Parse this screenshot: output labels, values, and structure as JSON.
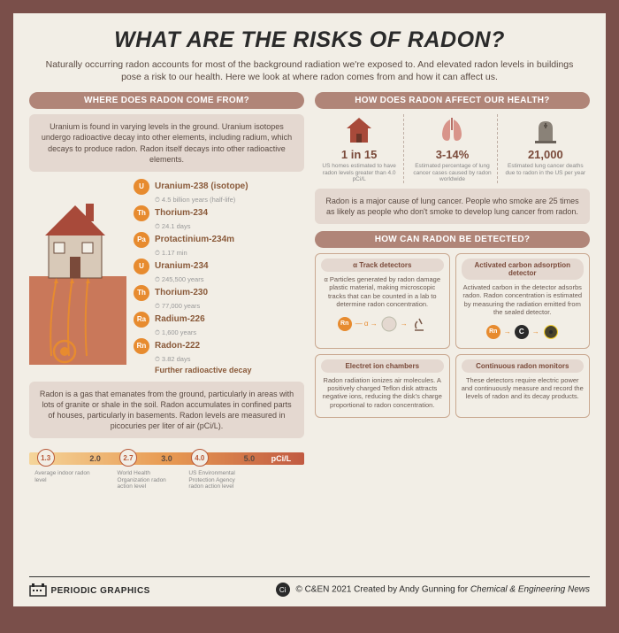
{
  "title": "WHAT ARE THE RISKS OF RADON?",
  "intro": "Naturally occurring radon accounts for most of the background radiation we're exposed to. And elevated radon levels in buildings pose a risk to our health. Here we look at where radon comes from and how it can affect us.",
  "colors": {
    "page_border": "#7a4f4a",
    "page_bg": "#f2eee6",
    "band": "#b08578",
    "box_bg": "#e4d8d0",
    "accent_orange": "#e78b2f",
    "text_dark": "#2a2a2a",
    "text_body": "#5a4a42",
    "text_muted": "#888888",
    "house_red": "#a84a3a",
    "house_wall": "#d8c9b8",
    "ground": "#c9785a",
    "lungs": "#d8948a",
    "grave": "#8a8278"
  },
  "left": {
    "heading": "WHERE DOES RADON COME FROM?",
    "para1": "Uranium is found in varying levels in the ground. Uranium isotopes undergo radioactive decay into other elements, including radium, which decays to produce radon. Radon itself decays into other radioactive elements.",
    "chain": [
      {
        "sym": "U",
        "name": "Uranium-238 (isotope)",
        "half": "4.5 billion years (half-life)"
      },
      {
        "sym": "Th",
        "name": "Thorium-234",
        "half": "24.1 days"
      },
      {
        "sym": "Pa",
        "name": "Protactinium-234m",
        "half": "1.17 min"
      },
      {
        "sym": "U",
        "name": "Uranium-234",
        "half": "245,500 years"
      },
      {
        "sym": "Th",
        "name": "Thorium-230",
        "half": "77,000 years"
      },
      {
        "sym": "Ra",
        "name": "Radium-226",
        "half": "1,600 years"
      },
      {
        "sym": "Rn",
        "name": "Radon-222",
        "half": "3.82 days"
      }
    ],
    "further": "Further radioactive decay",
    "para2": "Radon is a gas that emanates from the ground, particularly in areas with lots of granite or shale in the soil. Radon accumulates in confined parts of houses, particularly in basements. Radon levels are measured in picocuries per liter of air (pCi/L).",
    "scale": {
      "unit": "pCi/L",
      "gradient": [
        "#f5d59a",
        "#e89a52",
        "#c15a42"
      ],
      "circled": [
        {
          "val": "1.3",
          "pct": 6,
          "label": "Average indoor radon level"
        },
        {
          "val": "2.7",
          "pct": 36,
          "label": "World Health Organization radon action level"
        },
        {
          "val": "4.0",
          "pct": 62,
          "label": "US Environmental Protection Agency radon action level"
        }
      ],
      "plain": [
        {
          "val": "2.0",
          "pct": 22
        },
        {
          "val": "3.0",
          "pct": 48
        },
        {
          "val": "5.0",
          "pct": 78
        }
      ]
    }
  },
  "right": {
    "health_heading": "HOW DOES RADON AFFECT OUR HEALTH?",
    "stats": [
      {
        "icon": "house",
        "value": "1 in 15",
        "text": "US homes estimated to have radon levels greater than 4.0 pCi/L"
      },
      {
        "icon": "lungs",
        "value": "3-14%",
        "text": "Estimated percentage of lung cancer cases caused by radon worldwide"
      },
      {
        "icon": "grave",
        "value": "21,000",
        "text": "Estimated lung cancer deaths due to radon in the US per year"
      }
    ],
    "health_para": "Radon is a major cause of lung cancer. People who smoke are 25 times as likely as people who don't smoke to develop lung cancer from radon.",
    "detect_heading": "HOW CAN RADON BE DETECTED?",
    "detectors": [
      {
        "title": "α Track detectors",
        "text": "α Particles generated by radon damage plastic material, making microscopic tracks that can be counted in a lab to determine radon concentration.",
        "icon": "track"
      },
      {
        "title": "Activated carbon adsorption detector",
        "text": "Activated carbon in the detector adsorbs radon. Radon concentration is estimated by measuring the radiation emitted from the sealed detector.",
        "icon": "carbon"
      },
      {
        "title": "Electret ion chambers",
        "text": "Radon radiation ionizes air molecules. A positively charged Teflon disk attracts negative ions, reducing the disk's charge proportional to radon concentration.",
        "icon": "none"
      },
      {
        "title": "Continuous radon monitors",
        "text": "These detectors require electric power and continuously measure and record the levels of radon and its decay products.",
        "icon": "none"
      }
    ]
  },
  "footer": {
    "logo": "PERIODIC GRAPHICS",
    "ci": "Ci",
    "credit_prefix": "© C&EN 2021 Created by Andy Gunning for ",
    "credit_italic": "Chemical & Engineering News"
  }
}
